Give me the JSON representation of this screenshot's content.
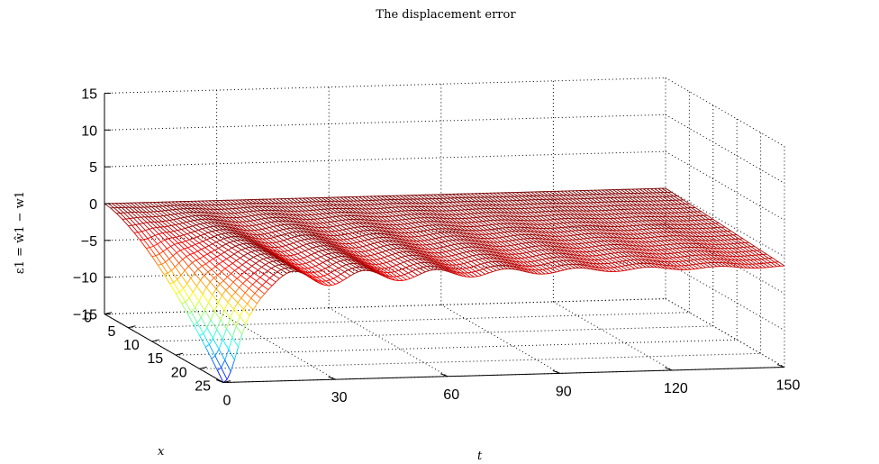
{
  "chart_data": {
    "type": "surface-mesh",
    "title": "The displacement error",
    "xlabel": "x",
    "tlabel": "t",
    "zlabel": "ε1 = ŵ1 − w1",
    "x_ticks": [
      "0",
      "5",
      "10",
      "15",
      "20",
      "25"
    ],
    "t_ticks": [
      "0",
      "30",
      "60",
      "90",
      "120",
      "150"
    ],
    "z_ticks": [
      "15",
      "10",
      "5",
      "0",
      "−5",
      "−10",
      "−15"
    ],
    "x_range": [
      0,
      25
    ],
    "t_range": [
      0,
      150
    ],
    "z_range": [
      -15,
      15
    ],
    "grid": true,
    "colormap": "jet",
    "surface": {
      "description_points": [
        {
          "x": 0,
          "t": 0,
          "z": 0
        },
        {
          "x": 25,
          "t": 0,
          "z": -15
        },
        {
          "x": 0,
          "t": 150,
          "z": 0
        },
        {
          "x": 25,
          "t": 150,
          "z": 0
        }
      ],
      "min_value": -15,
      "final_value": 0
    }
  }
}
